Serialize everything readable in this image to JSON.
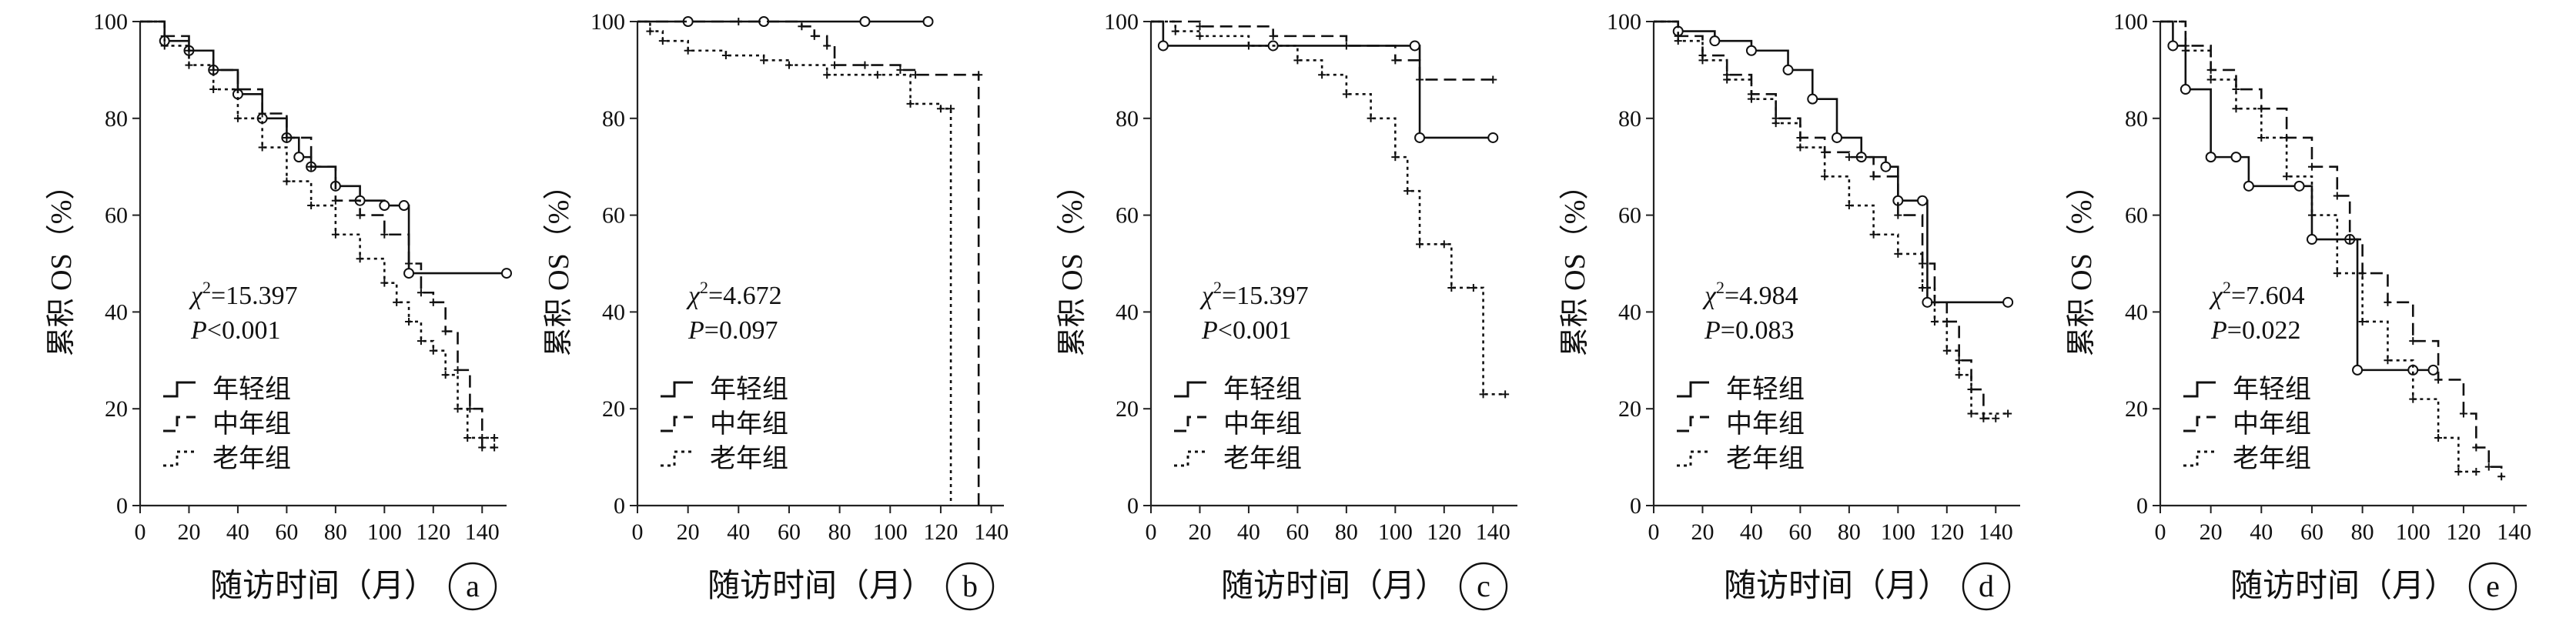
{
  "chart_data": [
    {
      "type": "line",
      "subtype": "kaplan-meier-step",
      "panel_label": "a",
      "ylabel": "累积 OS（%）",
      "xlabel": "随访时间（月）",
      "xlim": [
        0,
        150
      ],
      "ylim": [
        0,
        100
      ],
      "xticks": [
        "0",
        "20",
        "40",
        "60",
        "80",
        "100",
        "120",
        "140"
      ],
      "yticks": [
        "0",
        "20",
        "40",
        "60",
        "80",
        "100"
      ],
      "stat": {
        "chi_symbol": "χ",
        "chi_sup": "2",
        "chi_value": "=15.397",
        "p_symbol": "P",
        "p_value": "<0.001"
      },
      "legend_position": "bottom-left",
      "series": [
        {
          "name": "年轻组",
          "style": "solid",
          "censor": "circle",
          "points": [
            [
              0,
              100
            ],
            [
              10,
              96
            ],
            [
              20,
              94
            ],
            [
              30,
              90
            ],
            [
              40,
              85
            ],
            [
              50,
              80
            ],
            [
              60,
              76
            ],
            [
              65,
              72
            ],
            [
              70,
              70
            ],
            [
              80,
              66
            ],
            [
              90,
              63
            ],
            [
              100,
              62
            ],
            [
              108,
              62
            ],
            [
              110,
              48
            ],
            [
              150,
              48
            ]
          ]
        },
        {
          "name": "中年组",
          "style": "dashed",
          "censor": "plus",
          "points": [
            [
              0,
              100
            ],
            [
              10,
              97
            ],
            [
              20,
              94
            ],
            [
              30,
              90
            ],
            [
              40,
              86
            ],
            [
              50,
              81
            ],
            [
              60,
              76
            ],
            [
              70,
              70
            ],
            [
              80,
              63
            ],
            [
              90,
              60
            ],
            [
              100,
              56
            ],
            [
              110,
              50
            ],
            [
              115,
              44
            ],
            [
              120,
              42
            ],
            [
              125,
              36
            ],
            [
              130,
              28
            ],
            [
              135,
              20
            ],
            [
              140,
              12
            ],
            [
              145,
              12
            ]
          ]
        },
        {
          "name": "老年组",
          "style": "dotted",
          "censor": "plus",
          "points": [
            [
              0,
              100
            ],
            [
              10,
              95
            ],
            [
              20,
              91
            ],
            [
              30,
              86
            ],
            [
              40,
              80
            ],
            [
              50,
              74
            ],
            [
              60,
              67
            ],
            [
              70,
              62
            ],
            [
              80,
              56
            ],
            [
              90,
              51
            ],
            [
              100,
              46
            ],
            [
              105,
              42
            ],
            [
              110,
              38
            ],
            [
              115,
              34
            ],
            [
              120,
              32
            ],
            [
              125,
              27
            ],
            [
              130,
              20
            ],
            [
              134,
              14
            ],
            [
              140,
              14
            ],
            [
              145,
              14
            ]
          ]
        }
      ]
    },
    {
      "type": "line",
      "subtype": "kaplan-meier-step",
      "panel_label": "b",
      "ylabel": "累积 OS（%）",
      "xlabel": "随访时间（月）",
      "xlim": [
        0,
        145
      ],
      "ylim": [
        0,
        100
      ],
      "xticks": [
        "0",
        "20",
        "40",
        "60",
        "80",
        "100",
        "120",
        "140"
      ],
      "yticks": [
        "0",
        "20",
        "40",
        "60",
        "80",
        "100"
      ],
      "stat": {
        "chi_symbol": "χ",
        "chi_sup": "2",
        "chi_value": "=4.672",
        "p_symbol": "P",
        "p_value": "=0.097"
      },
      "legend_position": "bottom-left",
      "series": [
        {
          "name": "年轻组",
          "style": "solid",
          "censor": "circle",
          "points": [
            [
              0,
              100
            ],
            [
              20,
              100
            ],
            [
              50,
              100
            ],
            [
              90,
              100
            ],
            [
              115,
              100
            ]
          ]
        },
        {
          "name": "中年组",
          "style": "dashed",
          "censor": "plus",
          "points": [
            [
              0,
              100
            ],
            [
              40,
              100
            ],
            [
              65,
              99
            ],
            [
              70,
              97
            ],
            [
              75,
              95
            ],
            [
              78,
              91
            ],
            [
              90,
              91
            ],
            [
              104,
              90
            ],
            [
              110,
              89
            ],
            [
              135,
              89
            ],
            [
              135,
              0
            ]
          ]
        },
        {
          "name": "老年组",
          "style": "dotted",
          "censor": "plus",
          "points": [
            [
              0,
              100
            ],
            [
              5,
              98
            ],
            [
              10,
              96
            ],
            [
              20,
              94
            ],
            [
              35,
              93
            ],
            [
              50,
              92
            ],
            [
              60,
              91
            ],
            [
              75,
              89
            ],
            [
              95,
              89
            ],
            [
              108,
              83
            ],
            [
              120,
              82
            ],
            [
              124,
              82
            ],
            [
              124,
              0
            ]
          ]
        }
      ]
    },
    {
      "type": "line",
      "subtype": "kaplan-meier-step",
      "panel_label": "c",
      "ylabel": "累积 OS（%）",
      "xlabel": "随访时间（月）",
      "xlim": [
        0,
        150
      ],
      "ylim": [
        0,
        100
      ],
      "xticks": [
        "0",
        "20",
        "40",
        "60",
        "80",
        "100",
        "120",
        "140"
      ],
      "yticks": [
        "0",
        "20",
        "40",
        "60",
        "80",
        "100"
      ],
      "stat": {
        "chi_symbol": "χ",
        "chi_sup": "2",
        "chi_value": "=15.397",
        "p_symbol": "P",
        "p_value": "<0.001"
      },
      "legend_position": "bottom-left",
      "series": [
        {
          "name": "年轻组",
          "style": "solid",
          "censor": "circle",
          "points": [
            [
              0,
              100
            ],
            [
              5,
              95
            ],
            [
              50,
              95
            ],
            [
              108,
              95
            ],
            [
              110,
              76
            ],
            [
              140,
              76
            ]
          ]
        },
        {
          "name": "中年组",
          "style": "dashed",
          "censor": "plus",
          "points": [
            [
              0,
              100
            ],
            [
              20,
              99
            ],
            [
              50,
              97
            ],
            [
              80,
              95
            ],
            [
              100,
              92
            ],
            [
              110,
              88
            ],
            [
              140,
              88
            ]
          ]
        },
        {
          "name": "老年组",
          "style": "dotted",
          "censor": "plus",
          "points": [
            [
              0,
              100
            ],
            [
              10,
              98
            ],
            [
              20,
              97
            ],
            [
              40,
              95
            ],
            [
              60,
              92
            ],
            [
              70,
              89
            ],
            [
              80,
              85
            ],
            [
              90,
              80
            ],
            [
              100,
              72
            ],
            [
              105,
              65
            ],
            [
              110,
              54
            ],
            [
              120,
              54
            ],
            [
              123,
              45
            ],
            [
              132,
              45
            ],
            [
              136,
              23
            ],
            [
              145,
              23
            ]
          ]
        }
      ]
    },
    {
      "type": "line",
      "subtype": "kaplan-meier-step",
      "panel_label": "d",
      "ylabel": "累积 OS（%）",
      "xlabel": "随访时间（月）",
      "xlim": [
        0,
        150
      ],
      "ylim": [
        0,
        100
      ],
      "xticks": [
        "0",
        "20",
        "40",
        "60",
        "80",
        "100",
        "120",
        "140"
      ],
      "yticks": [
        "0",
        "20",
        "40",
        "60",
        "80",
        "100"
      ],
      "stat": {
        "chi_symbol": "χ",
        "chi_sup": "2",
        "chi_value": "=4.984",
        "p_symbol": "P",
        "p_value": "=0.083"
      },
      "legend_position": "bottom-left",
      "series": [
        {
          "name": "年轻组",
          "style": "solid",
          "censor": "circle",
          "points": [
            [
              0,
              100
            ],
            [
              10,
              98
            ],
            [
              25,
              96
            ],
            [
              40,
              94
            ],
            [
              55,
              90
            ],
            [
              65,
              84
            ],
            [
              75,
              76
            ],
            [
              85,
              72
            ],
            [
              95,
              70
            ],
            [
              100,
              63
            ],
            [
              110,
              63
            ],
            [
              112,
              42
            ],
            [
              145,
              42
            ]
          ]
        },
        {
          "name": "中年组",
          "style": "dashed",
          "censor": "plus",
          "points": [
            [
              0,
              100
            ],
            [
              10,
              97
            ],
            [
              20,
              93
            ],
            [
              30,
              89
            ],
            [
              40,
              85
            ],
            [
              50,
              80
            ],
            [
              60,
              76
            ],
            [
              70,
              73
            ],
            [
              80,
              72
            ],
            [
              90,
              68
            ],
            [
              100,
              60
            ],
            [
              110,
              50
            ],
            [
              115,
              42
            ],
            [
              120,
              38
            ],
            [
              125,
              30
            ],
            [
              130,
              24
            ],
            [
              135,
              18
            ],
            [
              140,
              18
            ]
          ]
        },
        {
          "name": "老年组",
          "style": "dotted",
          "censor": "plus",
          "points": [
            [
              0,
              100
            ],
            [
              10,
              96
            ],
            [
              20,
              92
            ],
            [
              30,
              88
            ],
            [
              40,
              84
            ],
            [
              50,
              79
            ],
            [
              60,
              74
            ],
            [
              70,
              68
            ],
            [
              80,
              62
            ],
            [
              90,
              56
            ],
            [
              100,
              52
            ],
            [
              110,
              45
            ],
            [
              115,
              38
            ],
            [
              120,
              32
            ],
            [
              125,
              27
            ],
            [
              130,
              19
            ],
            [
              145,
              19
            ]
          ]
        }
      ]
    },
    {
      "type": "line",
      "subtype": "kaplan-meier-step",
      "panel_label": "e",
      "ylabel": "累积 OS（%）",
      "xlabel": "随访时间（月）",
      "xlim": [
        0,
        145
      ],
      "ylim": [
        0,
        100
      ],
      "xticks": [
        "0",
        "20",
        "40",
        "60",
        "80",
        "100",
        "120",
        "140"
      ],
      "yticks": [
        "0",
        "20",
        "40",
        "60",
        "80",
        "100"
      ],
      "stat": {
        "chi_symbol": "χ",
        "chi_sup": "2",
        "chi_value": "=7.604",
        "p_symbol": "P",
        "p_value": "=0.022"
      },
      "legend_position": "bottom-left",
      "series": [
        {
          "name": "年轻组",
          "style": "solid",
          "censor": "circle",
          "points": [
            [
              0,
              100
            ],
            [
              5,
              95
            ],
            [
              10,
              86
            ],
            [
              20,
              72
            ],
            [
              30,
              72
            ],
            [
              35,
              66
            ],
            [
              55,
              66
            ],
            [
              60,
              55
            ],
            [
              75,
              55
            ],
            [
              78,
              28
            ],
            [
              100,
              28
            ],
            [
              108,
              28
            ]
          ]
        },
        {
          "name": "中年组",
          "style": "dashed",
          "censor": "plus",
          "points": [
            [
              0,
              100
            ],
            [
              10,
              95
            ],
            [
              20,
              90
            ],
            [
              30,
              86
            ],
            [
              40,
              82
            ],
            [
              50,
              76
            ],
            [
              60,
              70
            ],
            [
              70,
              64
            ],
            [
              75,
              55
            ],
            [
              80,
              48
            ],
            [
              90,
              42
            ],
            [
              100,
              34
            ],
            [
              110,
              26
            ],
            [
              120,
              19
            ],
            [
              125,
              12
            ],
            [
              130,
              8
            ],
            [
              135,
              6
            ]
          ]
        },
        {
          "name": "老年组",
          "style": "dotted",
          "censor": "plus",
          "points": [
            [
              0,
              100
            ],
            [
              10,
              94
            ],
            [
              20,
              88
            ],
            [
              30,
              82
            ],
            [
              40,
              76
            ],
            [
              50,
              68
            ],
            [
              60,
              60
            ],
            [
              70,
              48
            ],
            [
              80,
              38
            ],
            [
              90,
              30
            ],
            [
              100,
              22
            ],
            [
              110,
              14
            ],
            [
              118,
              7
            ],
            [
              125,
              7
            ]
          ]
        }
      ]
    }
  ]
}
